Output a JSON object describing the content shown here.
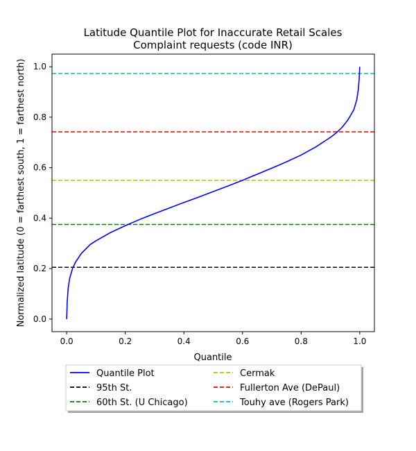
{
  "chart_data": {
    "type": "line",
    "title": "Latitude Quantile Plot for Inaccurate Retail Scales",
    "subtitle": "Complaint  requests (code INR)",
    "xlabel": "Quantile",
    "ylabel": "Normalized latitude (0 = farthest south, 1 = farthest north)",
    "xlim": [
      -0.05,
      1.05
    ],
    "ylim": [
      -0.05,
      1.05
    ],
    "xticks": [
      "0.0",
      "0.2",
      "0.4",
      "0.6",
      "0.8",
      "1.0"
    ],
    "yticks": [
      "0.0",
      "0.2",
      "0.4",
      "0.6",
      "0.8",
      "1.0"
    ],
    "grid": false,
    "legend_position": "below",
    "series": [
      {
        "name": "Quantile Plot",
        "color": "#0000ff",
        "style": "solid",
        "x": [
          0.0,
          0.002,
          0.005,
          0.01,
          0.02,
          0.03,
          0.05,
          0.08,
          0.1,
          0.15,
          0.2,
          0.25,
          0.3,
          0.35,
          0.4,
          0.45,
          0.5,
          0.55,
          0.6,
          0.65,
          0.7,
          0.75,
          0.8,
          0.85,
          0.9,
          0.92,
          0.94,
          0.96,
          0.98,
          0.99,
          0.995,
          0.998,
          1.0
        ],
        "y": [
          0.0,
          0.07,
          0.12,
          0.16,
          0.2,
          0.225,
          0.26,
          0.295,
          0.31,
          0.343,
          0.37,
          0.395,
          0.418,
          0.44,
          0.462,
          0.483,
          0.505,
          0.527,
          0.55,
          0.574,
          0.598,
          0.623,
          0.65,
          0.682,
          0.72,
          0.738,
          0.76,
          0.79,
          0.83,
          0.87,
          0.91,
          0.95,
          1.0
        ]
      }
    ],
    "reference_lines": [
      {
        "name": "95th St.",
        "y": 0.205,
        "color": "#000000",
        "style": "dashed"
      },
      {
        "name": "60th St. (U Chicago)",
        "y": 0.375,
        "color": "#008000",
        "style": "dashed"
      },
      {
        "name": "Cermak",
        "y": 0.55,
        "color": "#bfbf00",
        "style": "dashed"
      },
      {
        "name": "Fullerton Ave (DePaul)",
        "y": 0.742,
        "color": "#ff0000",
        "style": "dashed"
      },
      {
        "name": "Touhy ave (Rogers Park)",
        "y": 0.973,
        "color": "#00bfbf",
        "style": "dashed"
      }
    ]
  }
}
